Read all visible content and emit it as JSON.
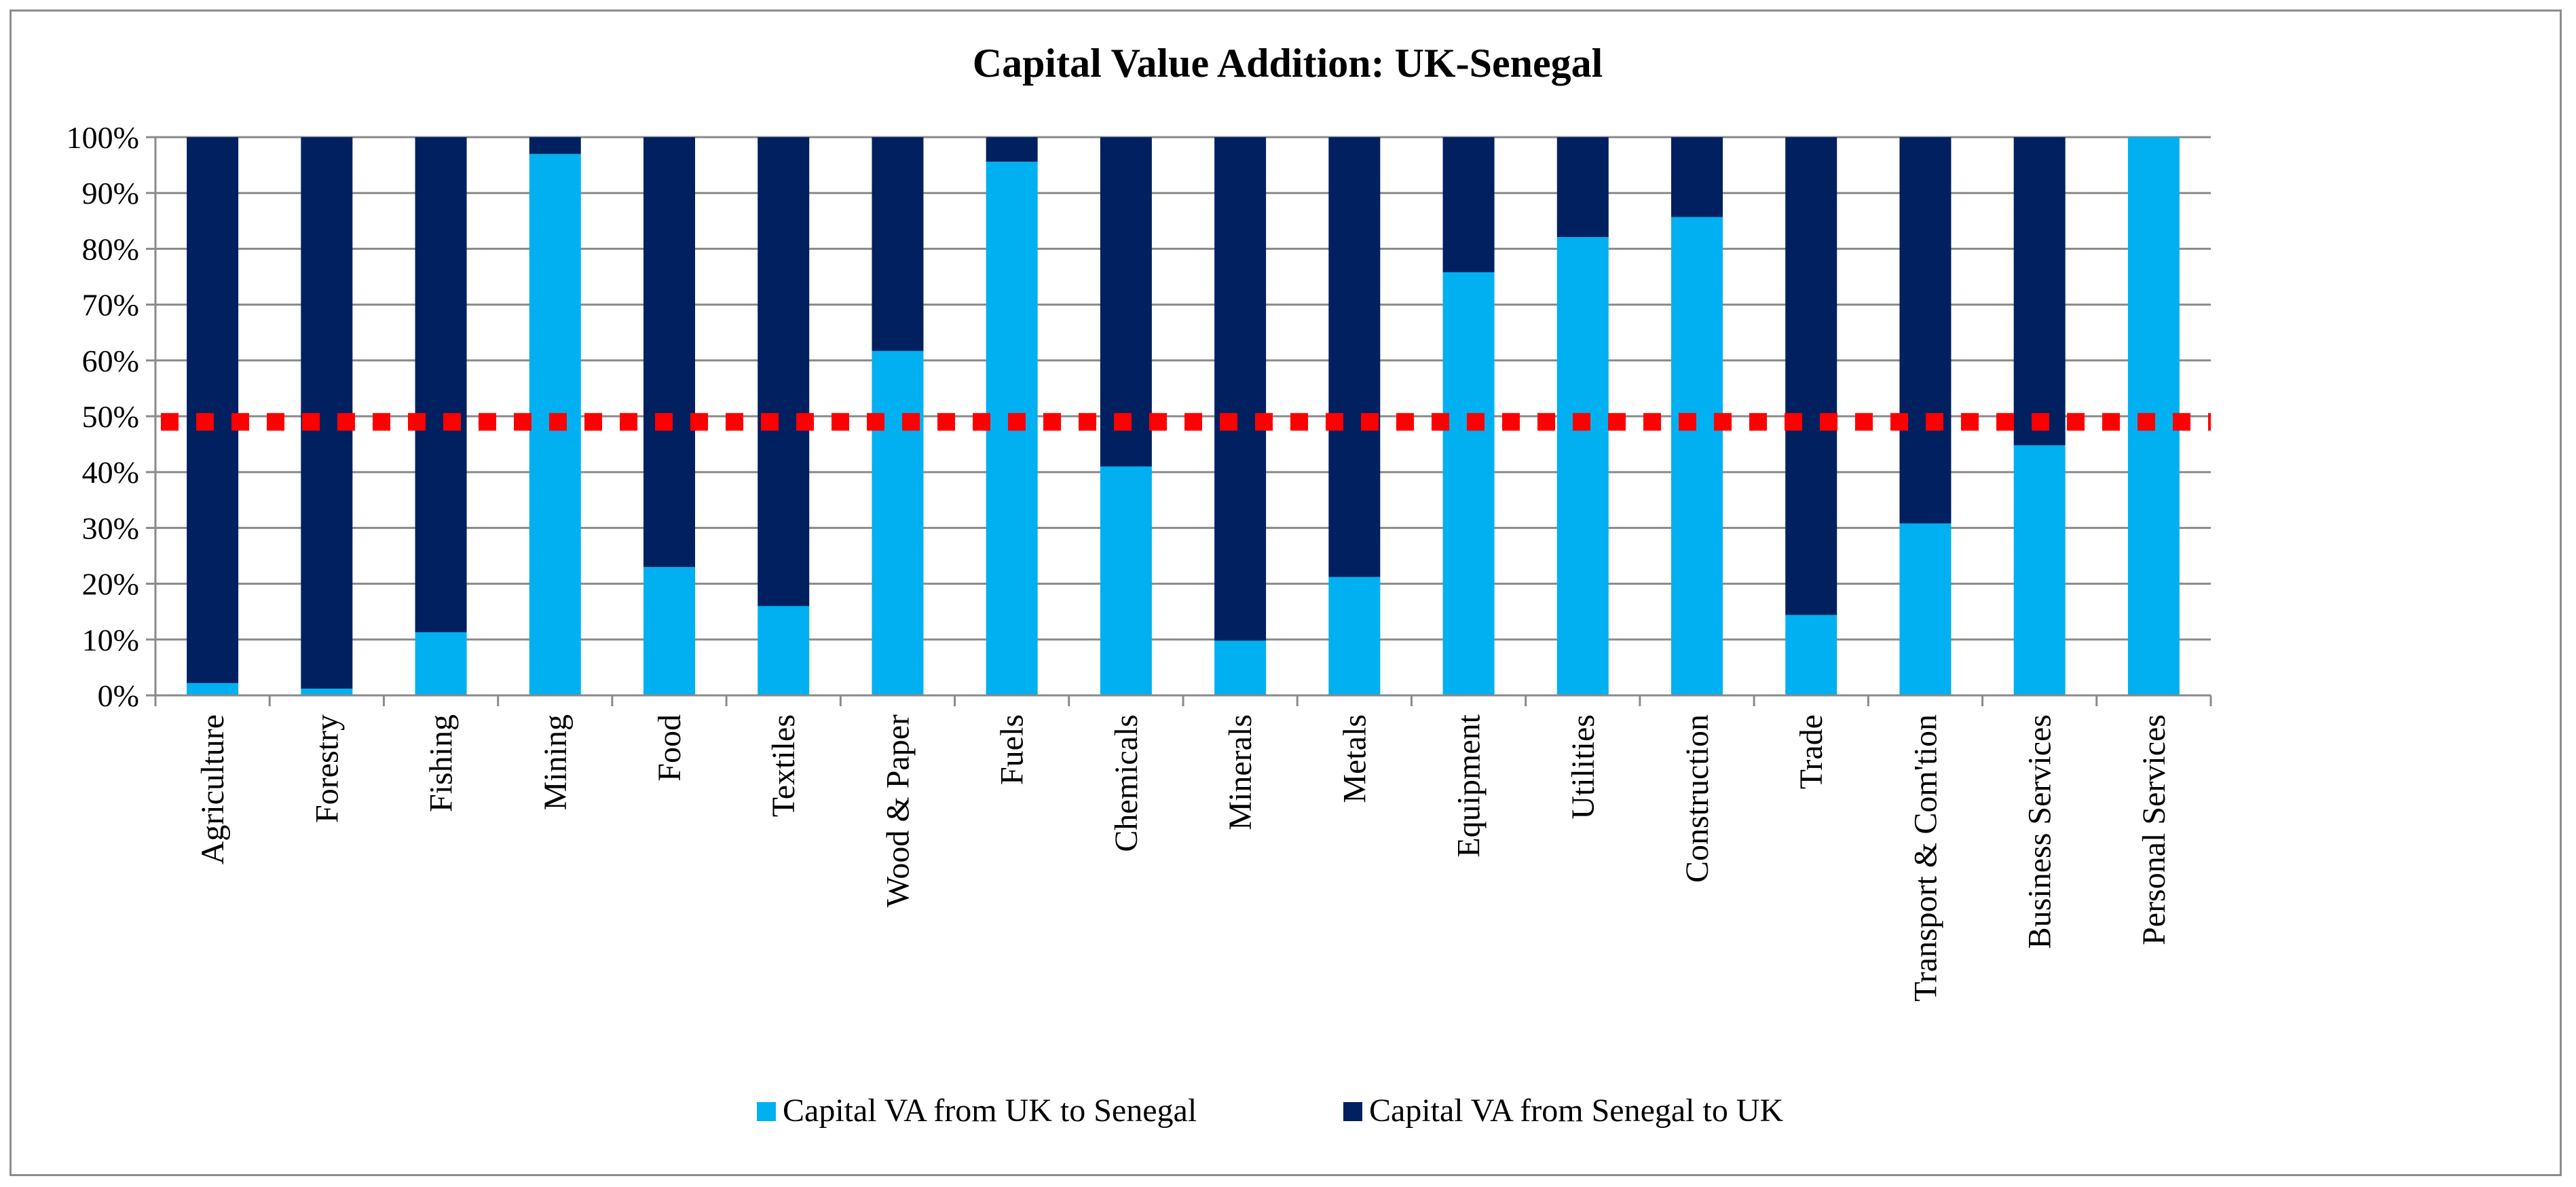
{
  "chart_data": {
    "type": "bar",
    "stacked": true,
    "title": "Capital Value Addition: UK-Senegal",
    "xlabel": "",
    "ylabel": "",
    "ylim": [
      0,
      100
    ],
    "y_ticks": [
      "0%",
      "10%",
      "20%",
      "30%",
      "40%",
      "50%",
      "60%",
      "70%",
      "80%",
      "90%",
      "100%"
    ],
    "categories": [
      "Agriculture",
      "Forestry",
      "Fishing",
      "Mining",
      "Food",
      "Textiles",
      "Wood & Paper",
      "Fuels",
      "Chemicals",
      "Minerals",
      "Metals",
      "Equipment",
      "Utilities",
      "Construction",
      "Trade",
      "Transport & Com'tion",
      "Business Services",
      "Personal Services"
    ],
    "series": [
      {
        "name": "Capital VA from UK to Senegal",
        "color": "#00b0f0",
        "values": [
          2.2,
          1.2,
          11.3,
          97.0,
          23.0,
          16.0,
          61.7,
          95.6,
          41.0,
          9.8,
          21.2,
          75.8,
          82.1,
          85.7,
          14.4,
          30.8,
          44.8,
          100.0
        ]
      },
      {
        "name": "Capital VA from Senegal to UK",
        "color": "#002060",
        "values": [
          97.8,
          98.8,
          88.7,
          3.0,
          77.0,
          84.0,
          38.3,
          4.4,
          59.0,
          90.2,
          78.8,
          24.2,
          17.9,
          14.3,
          85.6,
          69.2,
          55.2,
          0.0
        ]
      }
    ],
    "reference_line": {
      "value": 49,
      "color": "#ff0000",
      "style": "dotted"
    },
    "grid": true,
    "legend": "bottom"
  }
}
